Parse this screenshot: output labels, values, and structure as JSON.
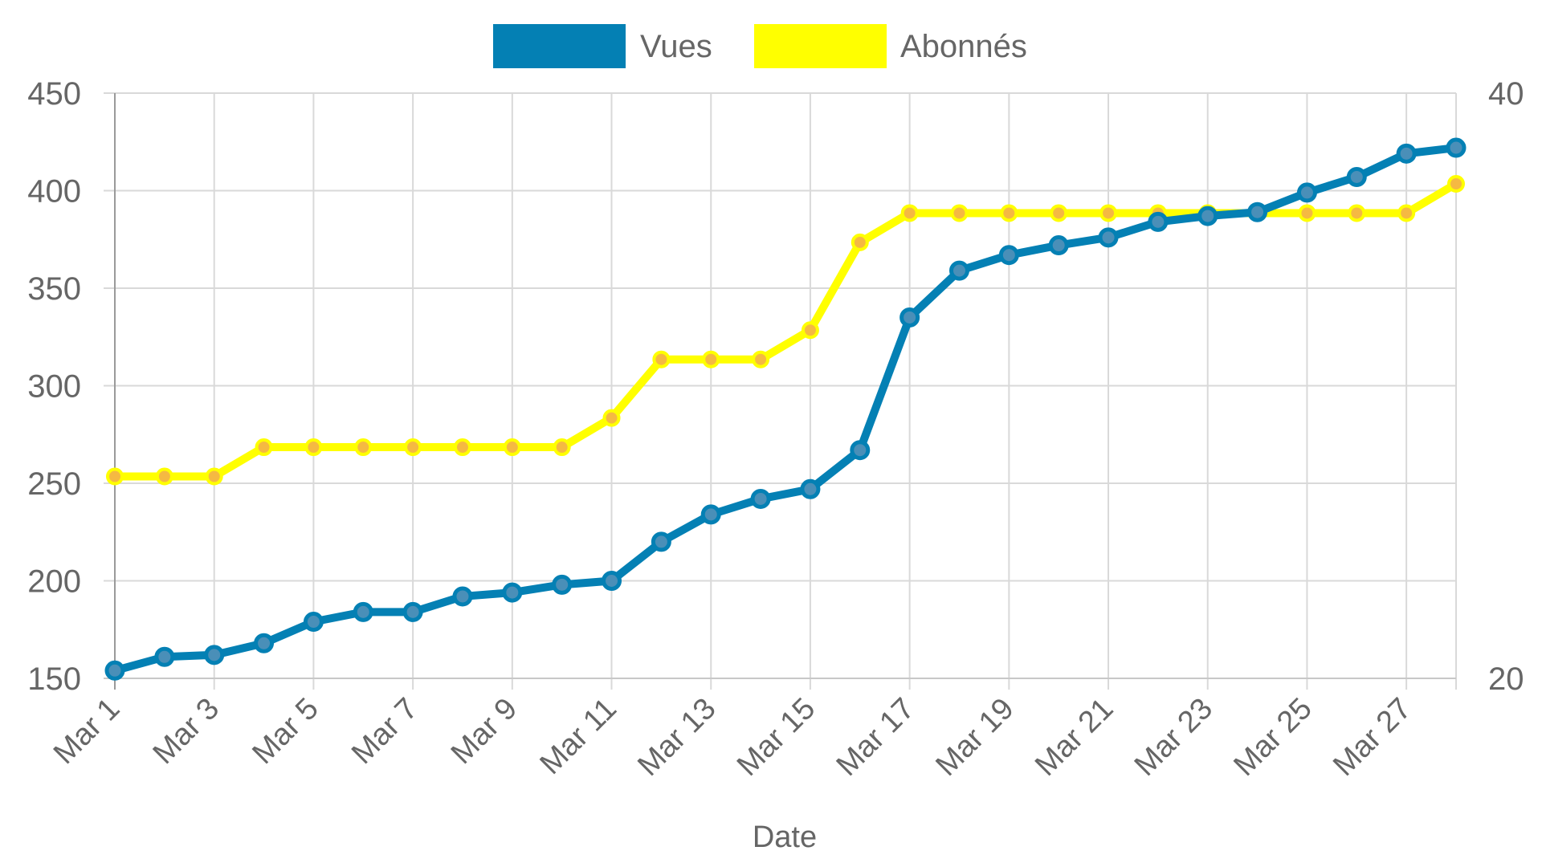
{
  "chart_data": {
    "type": "line",
    "xlabel": "Date",
    "x": [
      "Mar 1",
      "Mar 2",
      "Mar 3",
      "Mar 4",
      "Mar 5",
      "Mar 6",
      "Mar 7",
      "Mar 8",
      "Mar 9",
      "Mar 10",
      "Mar 11",
      "Mar 12",
      "Mar 13",
      "Mar 14",
      "Mar 15",
      "Mar 16",
      "Mar 17",
      "Mar 18",
      "Mar 19",
      "Mar 20",
      "Mar 21",
      "Mar 22",
      "Mar 23",
      "Mar 24",
      "Mar 25",
      "Mar 26",
      "Mar 27",
      "Mar 28"
    ],
    "x_tick_labels": [
      "Mar 1",
      "Mar 3",
      "Mar 5",
      "Mar 7",
      "Mar 9",
      "Mar 11",
      "Mar 13",
      "Mar 15",
      "Mar 17",
      "Mar 19",
      "Mar 21",
      "Mar 23",
      "Mar 25",
      "Mar 27"
    ],
    "y_left": {
      "ylim": [
        150,
        450
      ],
      "ticks": [
        "150",
        "200",
        "250",
        "300",
        "350",
        "400",
        "450"
      ]
    },
    "y_right": {
      "ylim": [
        20,
        40
      ],
      "ticks": [
        "20",
        "40"
      ]
    },
    "grid": true,
    "legend_position": "top-center",
    "series": [
      {
        "name": "Vues",
        "axis": "left",
        "color": "#0480b4",
        "values": [
          154,
          161,
          162,
          168,
          179,
          184,
          184,
          192,
          194,
          198,
          200,
          220,
          234,
          242,
          247,
          267,
          335,
          359,
          367,
          372,
          376,
          384,
          387,
          389,
          399,
          407,
          419,
          422
        ]
      },
      {
        "name": "Abonnés",
        "axis": "right",
        "color": "#ffff00",
        "point_color": "#f5b942",
        "values": [
          26.9,
          26.9,
          26.9,
          27.9,
          27.9,
          27.9,
          27.9,
          27.9,
          27.9,
          27.9,
          28.9,
          30.9,
          30.9,
          30.9,
          31.9,
          34.9,
          35.9,
          35.9,
          35.9,
          35.9,
          35.9,
          35.9,
          35.9,
          35.9,
          35.9,
          35.9,
          35.9,
          36.9
        ]
      }
    ]
  }
}
